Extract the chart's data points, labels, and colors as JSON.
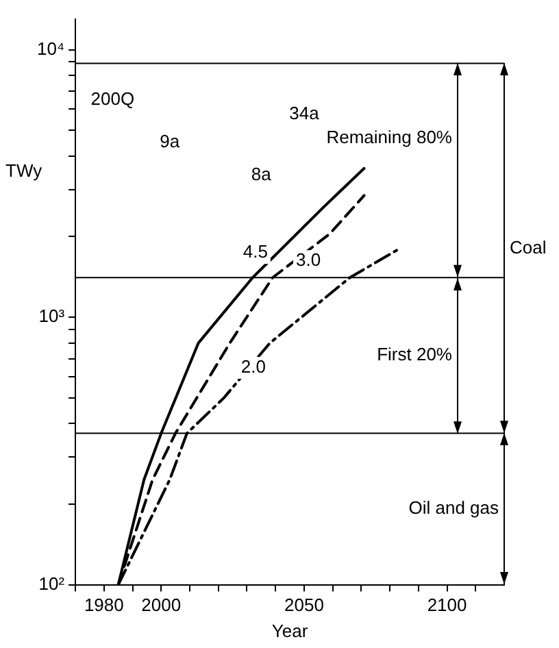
{
  "chart_data": {
    "type": "line",
    "xlabel": "Year",
    "ylabel": "TWy",
    "log": "y",
    "grid": false,
    "legend": false,
    "marker": "none",
    "xlim": [
      1970,
      2120
    ],
    "ylim": [
      100,
      13000
    ],
    "xticks": [
      {
        "value": 1970,
        "label": null
      },
      1980,
      {
        "value": 1990,
        "label": null
      },
      2000,
      {
        "value": 2010,
        "label": null
      },
      {
        "value": 2020,
        "label": null
      },
      {
        "value": 2030,
        "label": null
      },
      {
        "value": 2040,
        "label": null
      },
      2050,
      {
        "value": 2060,
        "label": null
      },
      {
        "value": 2070,
        "label": null
      },
      {
        "value": 2080,
        "label": null
      },
      {
        "value": 2090,
        "label": null
      },
      2100,
      {
        "value": 2110,
        "label": null
      }
    ],
    "yticks": [
      {
        "value": 100,
        "label": "10²"
      },
      {
        "value": 200,
        "label": null
      },
      {
        "value": 300,
        "label": null
      },
      {
        "value": 400,
        "label": null
      },
      {
        "value": 500,
        "label": null
      },
      {
        "value": 600,
        "label": null
      },
      {
        "value": 700,
        "label": null
      },
      {
        "value": 800,
        "label": null
      },
      {
        "value": 900,
        "label": null
      },
      {
        "value": 1000,
        "label": "10³"
      },
      {
        "value": 2000,
        "label": null
      },
      {
        "value": 3000,
        "label": null
      },
      {
        "value": 4000,
        "label": null
      },
      {
        "value": 5000,
        "label": null
      },
      {
        "value": 6000,
        "label": null
      },
      {
        "value": 7000,
        "label": null
      },
      {
        "value": 8000,
        "label": null
      },
      {
        "value": 9000,
        "label": null
      },
      {
        "value": 10000,
        "label": "10⁴"
      }
    ],
    "series": [
      {
        "name": "4.5",
        "color": "#000000",
        "line_style": "solid",
        "x": [
          1985,
          1994,
          2000,
          2013,
          2032,
          2057,
          2071
        ],
        "values": [
          100,
          247,
          368,
          800,
          1406,
          2590,
          3600
        ]
      },
      {
        "name": "3.0",
        "color": "#000000",
        "line_style": "dashed",
        "x": [
          1985,
          1997,
          2005,
          2024,
          2039,
          2059,
          2071
        ],
        "values": [
          100,
          247,
          368,
          800,
          1406,
          2050,
          2850
        ]
      },
      {
        "name": "2.0",
        "color": "#000000",
        "line_style": "dashdot",
        "x": [
          1985,
          2003,
          2009,
          2022,
          2038,
          2066,
          2084
        ],
        "values": [
          100,
          247,
          368,
          500,
          800,
          1406,
          1820
        ]
      }
    ],
    "ref_lines": [
      {
        "axis": "y",
        "value": 8890,
        "color": "#000000"
      },
      {
        "axis": "y",
        "value": 1406,
        "color": "#000000"
      },
      {
        "axis": "y",
        "value": 368,
        "color": "#000000"
      }
    ],
    "annotations": [
      {
        "text": "200Q",
        "x": 1983,
        "y": 6500
      },
      {
        "text": "9a",
        "x": 2003,
        "y": 4500
      },
      {
        "text": "8a",
        "x": 2035,
        "y": 3400
      },
      {
        "text": "34a",
        "x": 2050,
        "y": 5740
      },
      "Remaining 80%",
      "First 20%",
      "Coal",
      "Oil and gas"
    ]
  }
}
